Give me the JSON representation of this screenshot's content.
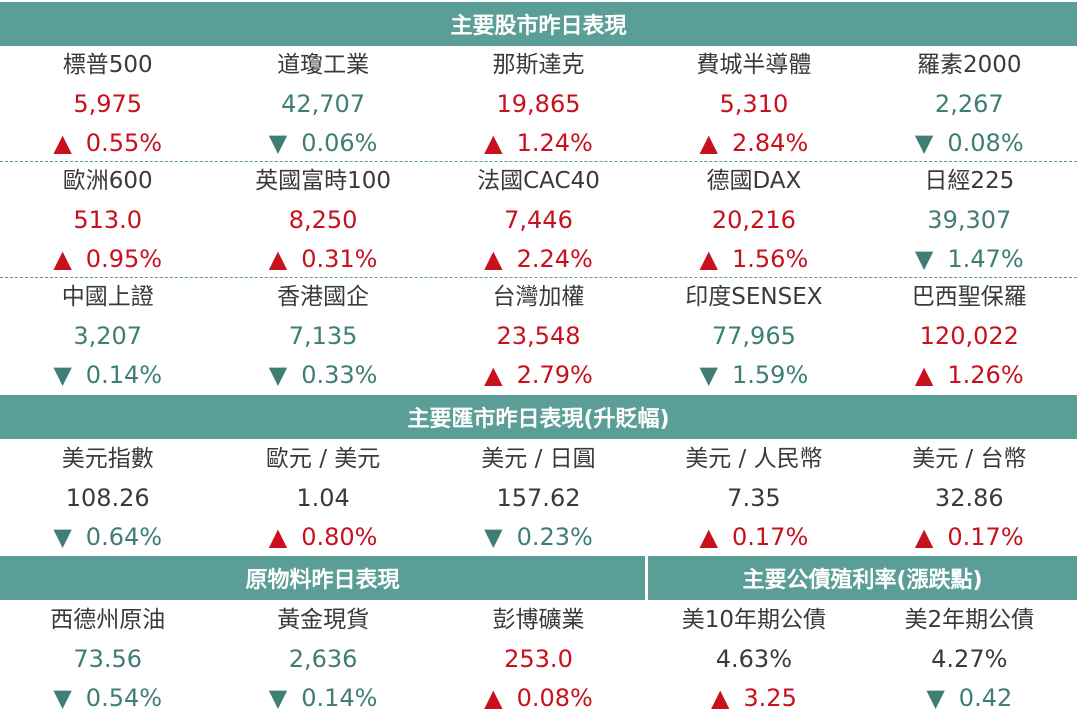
{
  "sections": {
    "stocks_title": "主要股市昨日表現",
    "fx_title": "主要匯市昨日表現(升貶幅)",
    "commodities_title": "原物料昨日表現",
    "bonds_title": "主要公債殖利率(漲跌點)"
  },
  "stocks_row1": [
    {
      "name": "標普500",
      "value": "5,975",
      "arrow": "▲",
      "change": "0.55%",
      "dir": "up"
    },
    {
      "name": "道瓊工業",
      "value": "42,707",
      "arrow": "▼",
      "change": "0.06%",
      "dir": "down"
    },
    {
      "name": "那斯達克",
      "value": "19,865",
      "arrow": "▲",
      "change": "1.24%",
      "dir": "up"
    },
    {
      "name": "費城半導體",
      "value": "5,310",
      "arrow": "▲",
      "change": "2.84%",
      "dir": "up"
    },
    {
      "name": "羅素2000",
      "value": "2,267",
      "arrow": "▼",
      "change": "0.08%",
      "dir": "down"
    }
  ],
  "stocks_row2": [
    {
      "name": "歐洲600",
      "value": "513.0",
      "arrow": "▲",
      "change": "0.95%",
      "dir": "up"
    },
    {
      "name": "英國富時100",
      "value": "8,250",
      "arrow": "▲",
      "change": "0.31%",
      "dir": "up"
    },
    {
      "name": "法國CAC40",
      "value": "7,446",
      "arrow": "▲",
      "change": "2.24%",
      "dir": "up"
    },
    {
      "name": "德國DAX",
      "value": "20,216",
      "arrow": "▲",
      "change": "1.56%",
      "dir": "up"
    },
    {
      "name": "日經225",
      "value": "39,307",
      "arrow": "▼",
      "change": "1.47%",
      "dir": "down"
    }
  ],
  "stocks_row3": [
    {
      "name": "中國上證",
      "value": "3,207",
      "arrow": "▼",
      "change": "0.14%",
      "dir": "down"
    },
    {
      "name": "香港國企",
      "value": "7,135",
      "arrow": "▼",
      "change": "0.33%",
      "dir": "down"
    },
    {
      "name": "台灣加權",
      "value": "23,548",
      "arrow": "▲",
      "change": "2.79%",
      "dir": "up"
    },
    {
      "name": "印度SENSEX",
      "value": "77,965",
      "arrow": "▼",
      "change": "1.59%",
      "dir": "down"
    },
    {
      "name": "巴西聖保羅",
      "value": "120,022",
      "arrow": "▲",
      "change": "1.26%",
      "dir": "up"
    }
  ],
  "fx_row": [
    {
      "name": "美元指數",
      "value": "108.26",
      "arrow": "▼",
      "change": "0.64%",
      "dir": "down"
    },
    {
      "name": "歐元 / 美元",
      "value": "1.04",
      "arrow": "▲",
      "change": "0.80%",
      "dir": "up"
    },
    {
      "name": "美元 / 日圓",
      "value": "157.62",
      "arrow": "▼",
      "change": "0.23%",
      "dir": "down"
    },
    {
      "name": "美元 / 人民幣",
      "value": "7.35",
      "arrow": "▲",
      "change": "0.17%",
      "dir": "up"
    },
    {
      "name": "美元 / 台幣",
      "value": "32.86",
      "arrow": "▲",
      "change": "0.17%",
      "dir": "up"
    }
  ],
  "last_row": [
    {
      "name": "西德州原油",
      "value": "73.56",
      "arrow": "▼",
      "change": "0.54%",
      "dir": "down"
    },
    {
      "name": "黃金現貨",
      "value": "2,636",
      "arrow": "▼",
      "change": "0.14%",
      "dir": "down"
    },
    {
      "name": "彭博礦業",
      "value": "253.0",
      "arrow": "▲",
      "change": "0.08%",
      "dir": "up"
    },
    {
      "name": "美10年期公債",
      "value": "4.63%",
      "arrow": "▲",
      "change": "3.25",
      "dir": "up"
    },
    {
      "name": "美2年期公債",
      "value": "4.27%",
      "arrow": "▼",
      "change": "0.42",
      "dir": "down"
    }
  ],
  "colors": {
    "header_bg": "#5a9e97",
    "up": "#c8111d",
    "down": "#3f7d75",
    "label": "#3a3a3a"
  }
}
